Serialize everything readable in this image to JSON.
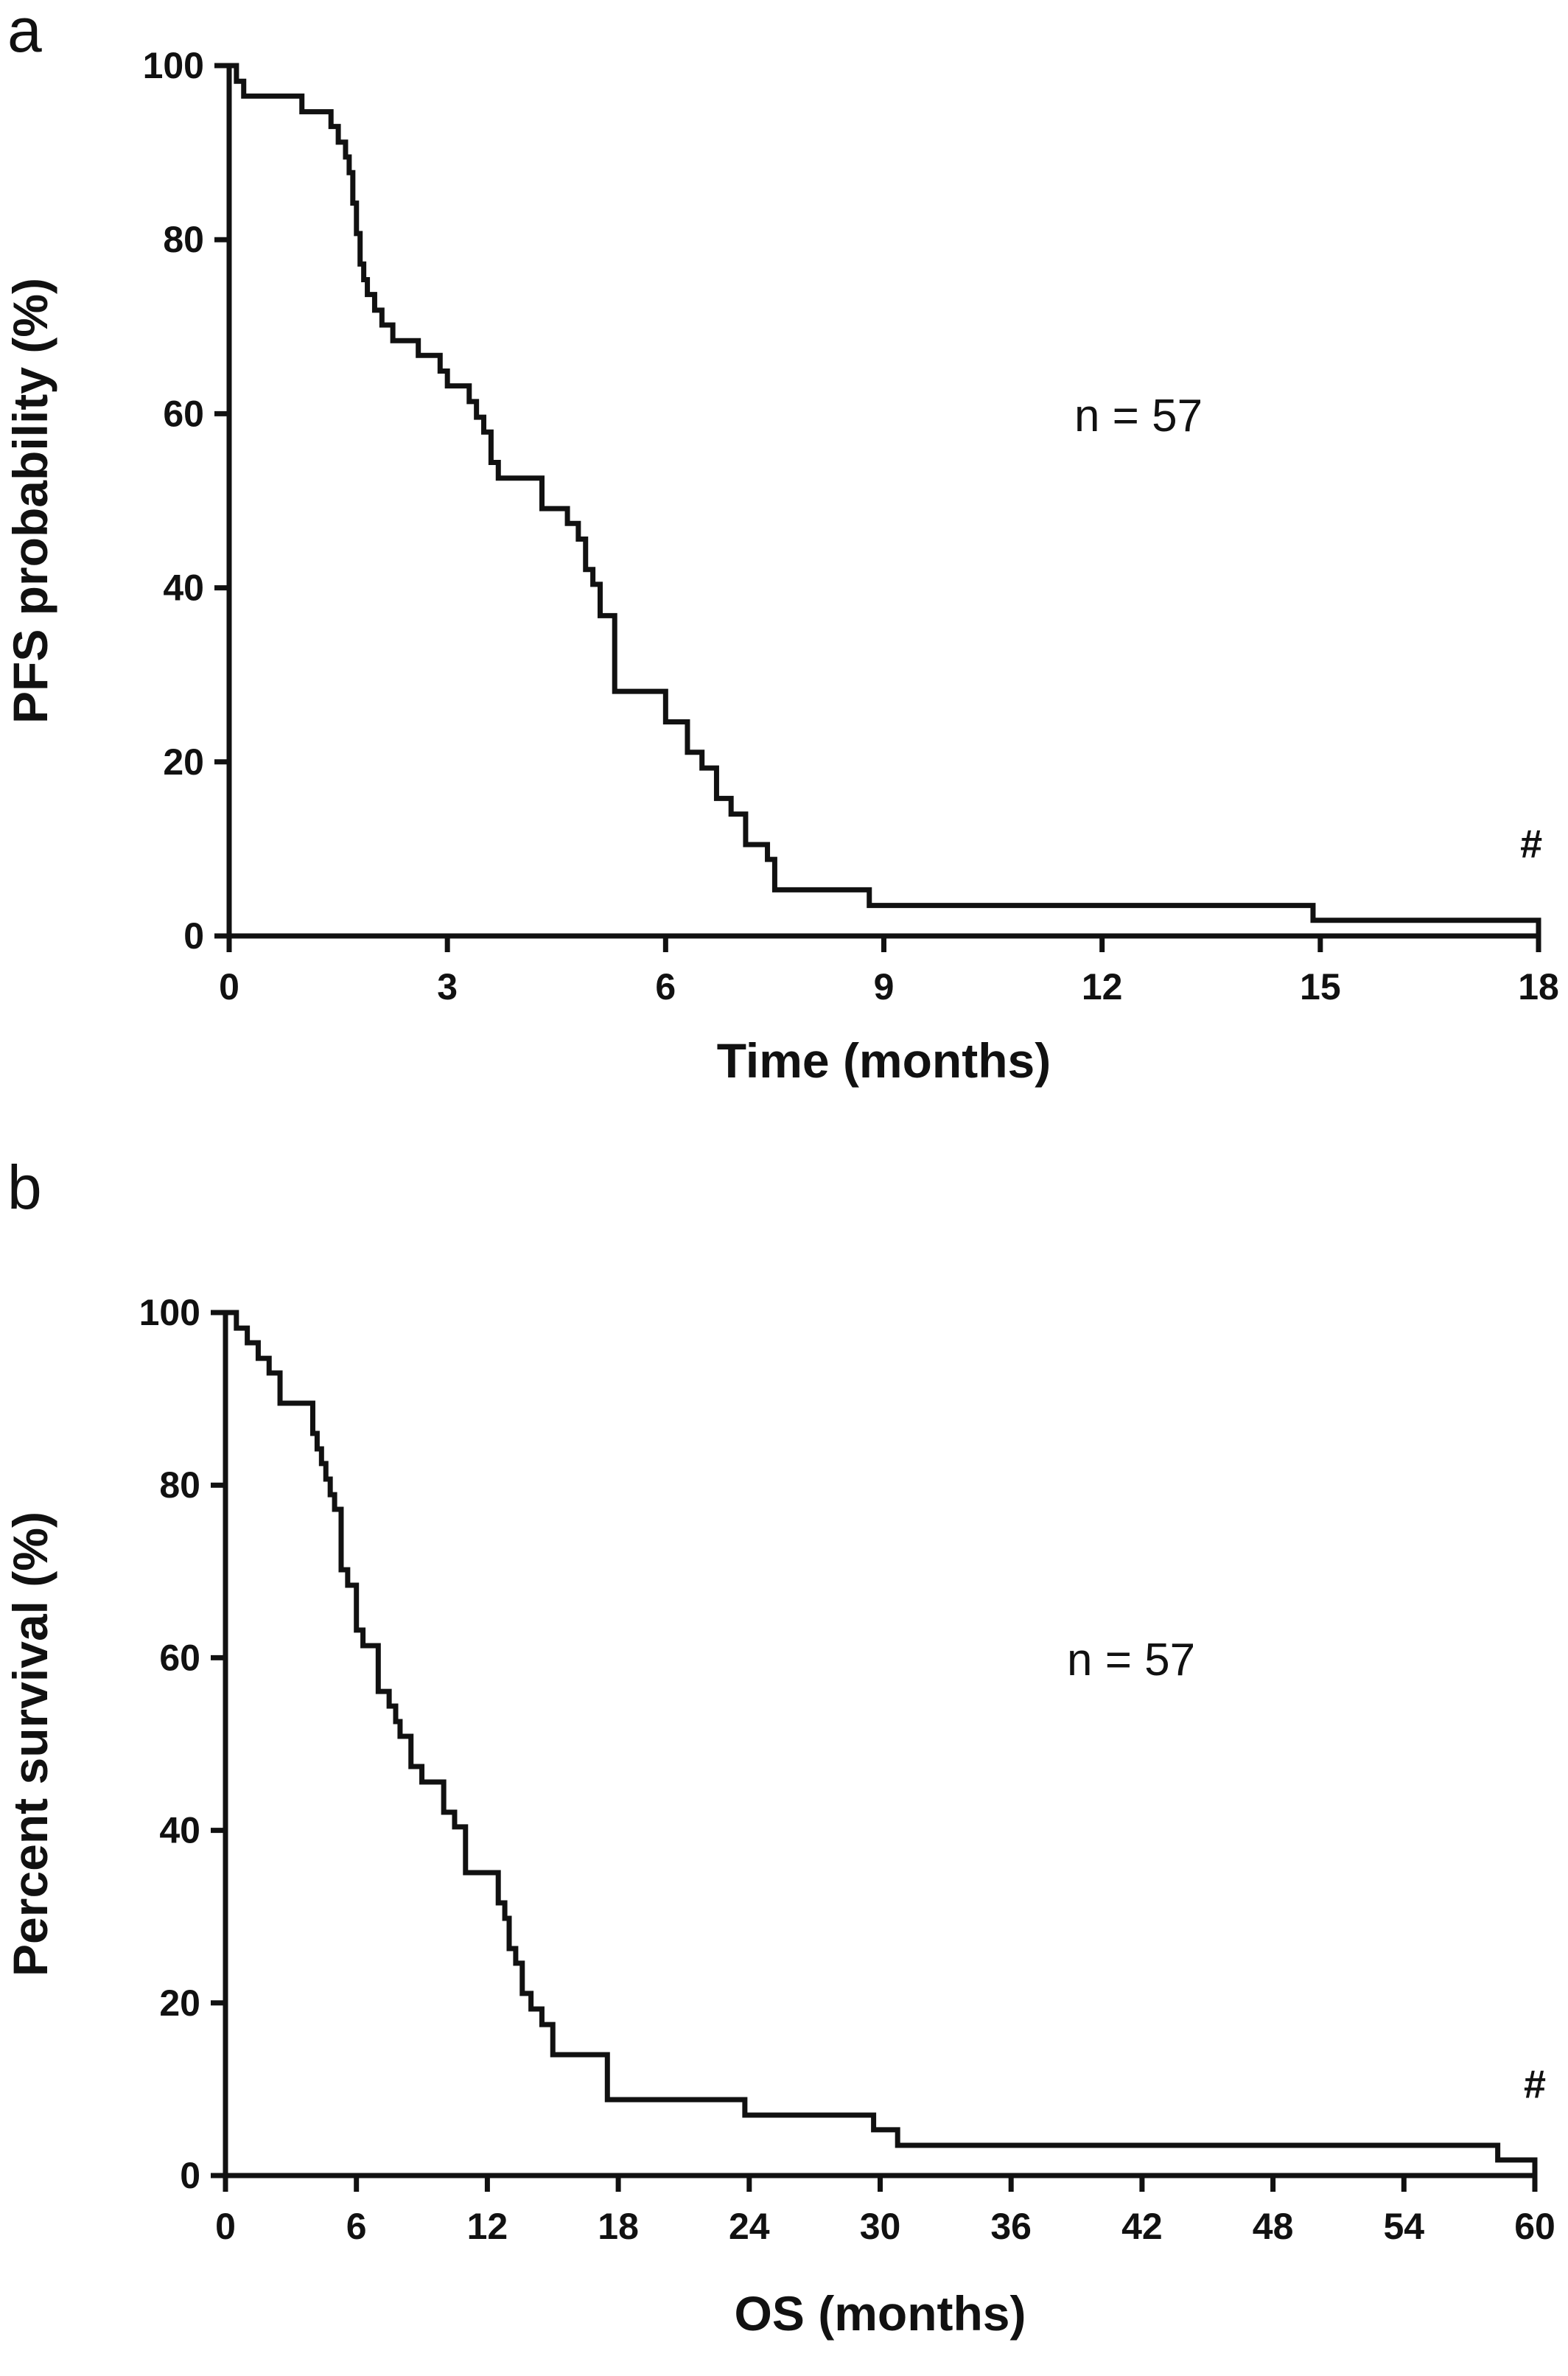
{
  "chart_data": [
    {
      "type": "line",
      "panel_label": "a",
      "xlabel": "Time (months)",
      "ylabel": "PFS probability (%)",
      "xlim": [
        0,
        18
      ],
      "ylim": [
        0,
        100
      ],
      "xticks": [
        0,
        3,
        6,
        9,
        12,
        15,
        18
      ],
      "yticks": [
        0,
        20,
        40,
        60,
        80,
        100
      ],
      "xtick_labels": [
        "0",
        "3",
        "6",
        "9",
        "12",
        "15",
        "18"
      ],
      "ytick_labels": [
        "0",
        "20",
        "40",
        "60",
        "80",
        "100"
      ],
      "grid": false,
      "step": true,
      "annotations": [
        {
          "text": "n = 57",
          "x": 12.5,
          "y": 58
        },
        {
          "text": "#",
          "x": 17.9,
          "y": 9
        }
      ],
      "series": [
        {
          "color": "#111111",
          "x": [
            0,
            0.1,
            0.2,
            0.3,
            0.5,
            1.0,
            1.4,
            1.5,
            1.6,
            1.65,
            1.7,
            1.75,
            1.8,
            1.85,
            1.9,
            2.0,
            2.1,
            2.25,
            2.4,
            2.6,
            2.9,
            3.0,
            3.1,
            3.3,
            3.4,
            3.5,
            3.6,
            3.7,
            4.3,
            4.55,
            4.65,
            4.8,
            4.9,
            5.0,
            5.1,
            5.2,
            5.3,
            5.8,
            6.0,
            6.15,
            6.3,
            6.5,
            6.7,
            6.8,
            6.9,
            7.1,
            7.4,
            7.5,
            8.8,
            14.9,
            18.0
          ],
          "y": [
            100,
            98.2,
            96.5,
            96.5,
            96.5,
            94.7,
            93.0,
            91.2,
            89.5,
            87.7,
            84.2,
            80.7,
            77.2,
            75.4,
            73.7,
            71.9,
            70.2,
            68.4,
            68.4,
            66.7,
            64.9,
            63.2,
            63.2,
            61.4,
            59.6,
            57.9,
            54.4,
            52.6,
            49.1,
            49.1,
            47.4,
            45.6,
            42.1,
            40.4,
            36.8,
            36.8,
            28.1,
            28.1,
            24.6,
            24.6,
            21.1,
            19.3,
            15.8,
            15.8,
            14.0,
            10.5,
            8.8,
            5.3,
            3.5,
            1.8,
            0
          ]
        }
      ]
    },
    {
      "type": "line",
      "panel_label": "b",
      "xlabel": "OS (months)",
      "ylabel": "Percent survival (%)",
      "xlim": [
        0,
        60
      ],
      "ylim": [
        0,
        100
      ],
      "xticks": [
        0,
        6,
        12,
        18,
        24,
        30,
        36,
        42,
        48,
        54,
        60
      ],
      "yticks": [
        0,
        20,
        40,
        60,
        80,
        100
      ],
      "xtick_labels": [
        "0",
        "6",
        "12",
        "18",
        "24",
        "30",
        "36",
        "42",
        "48",
        "54",
        "60"
      ],
      "ytick_labels": [
        "0",
        "20",
        "40",
        "60",
        "80",
        "100"
      ],
      "grid": false,
      "step": true,
      "annotations": [
        {
          "text": "n = 57",
          "x": 41.5,
          "y": 58
        },
        {
          "text": "#",
          "x": 60,
          "y": 9
        }
      ],
      "series": [
        {
          "color": "#111111",
          "x": [
            0,
            0.5,
            1.0,
            1.5,
            2.0,
            2.5,
            3.0,
            4.0,
            4.2,
            4.4,
            4.6,
            4.8,
            5.0,
            5.3,
            5.6,
            6.0,
            6.3,
            7.0,
            7.5,
            7.8,
            8.0,
            8.5,
            9.0,
            10.0,
            10.5,
            11.0,
            12.5,
            12.8,
            13.0,
            13.3,
            13.6,
            14.0,
            14.5,
            15.0,
            17.5,
            23.8,
            29.7,
            30.8,
            58.3,
            60.0
          ],
          "y": [
            100,
            98.2,
            96.5,
            94.7,
            93.0,
            89.5,
            89.5,
            86.0,
            84.2,
            82.5,
            80.7,
            78.9,
            77.2,
            70.2,
            68.4,
            63.2,
            61.4,
            56.1,
            54.4,
            52.6,
            50.9,
            47.4,
            45.6,
            42.1,
            40.4,
            35.1,
            31.6,
            29.8,
            26.3,
            24.6,
            21.1,
            19.3,
            17.5,
            14.0,
            8.8,
            7.0,
            5.3,
            3.5,
            1.8,
            0
          ]
        }
      ]
    }
  ]
}
